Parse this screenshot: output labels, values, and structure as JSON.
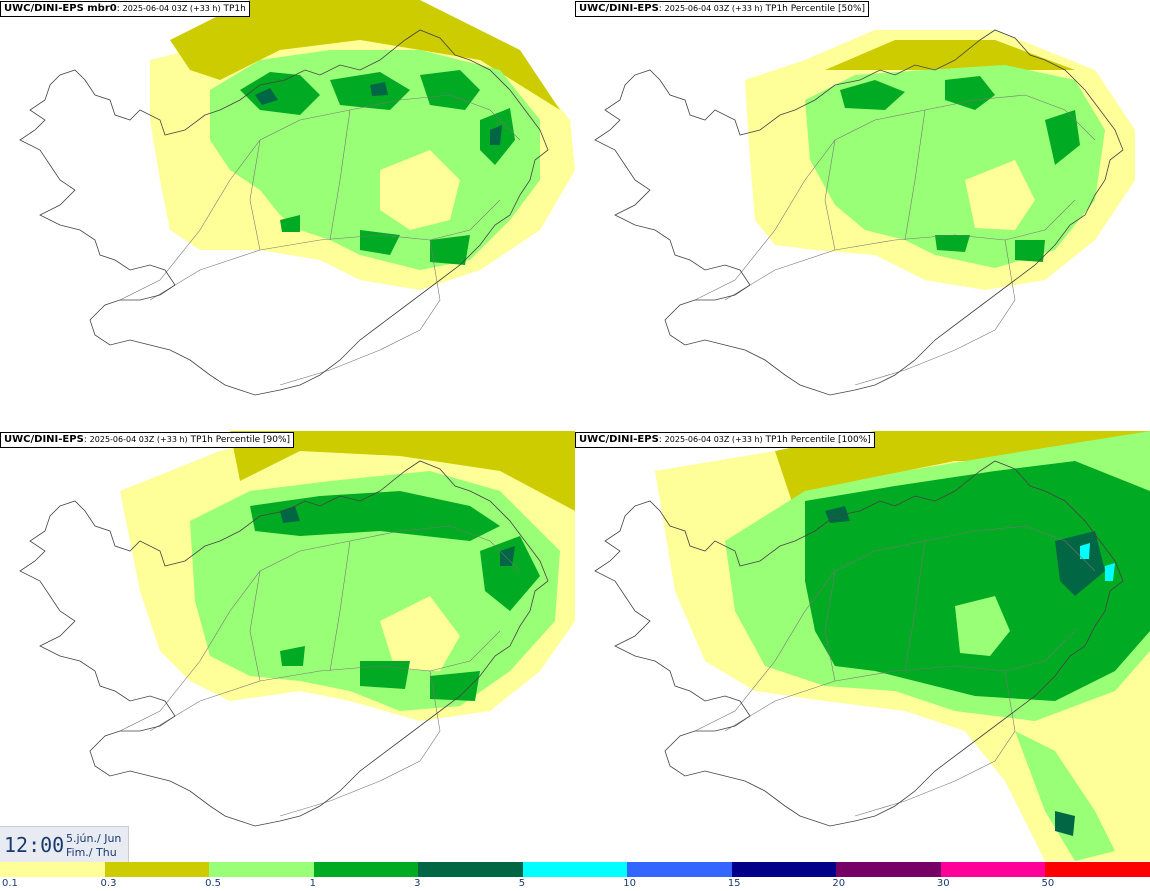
{
  "panels": [
    {
      "model": "UWC/DINI-EPS mbr0",
      "run": "2025-06-04 03Z (+33 h)",
      "field": "TP1h"
    },
    {
      "model": "UWC/DINI-EPS",
      "run": "2025-06-04 03Z (+33 h)",
      "field": "TP1h Percentile [50%]"
    },
    {
      "model": "UWC/DINI-EPS",
      "run": "2025-06-04 03Z (+33 h)",
      "field": "TP1h Percentile [90%]"
    },
    {
      "model": "UWC/DINI-EPS",
      "run": "2025-06-04 03Z (+33 h)",
      "field": "TP1h Percentile [100%]"
    }
  ],
  "valid_time": {
    "time": "12:00",
    "date": "5.jún./ Jun",
    "weekday": "Fim./ Thu"
  },
  "legend": {
    "ticks": [
      "0.1",
      "0.3",
      "0.5",
      "1",
      "3",
      "5",
      "10",
      "15",
      "20",
      "30",
      "50"
    ],
    "colors": [
      "#ffff99",
      "#cccc00",
      "#99ff77",
      "#00aa22",
      "#006644",
      "#00ffff",
      "#3366ff",
      "#000088",
      "#770066",
      "#ff0099",
      "#ff0000"
    ]
  },
  "precip_colors": {
    "c01": "#ffff99",
    "c03": "#cccc00",
    "c05": "#99ff77",
    "c1": "#00aa22",
    "c3": "#006644",
    "c5": "#00ffff"
  }
}
